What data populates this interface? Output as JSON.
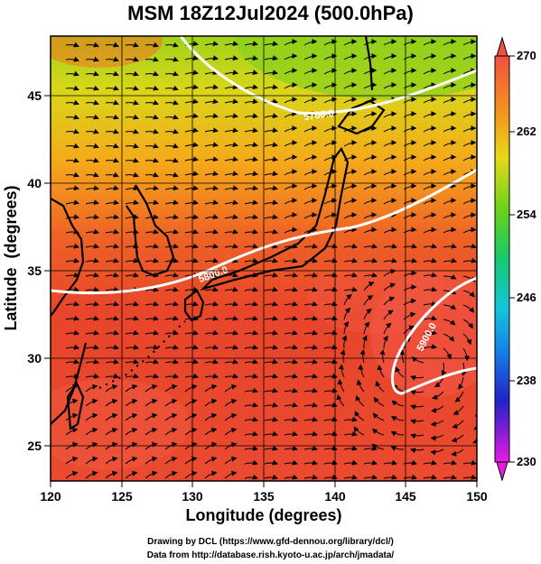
{
  "title": "MSM 18Z12Jul2024 (500.0hPa)",
  "map": {
    "xaxis": {
      "label": "Longitude (degrees)",
      "min": 120,
      "max": 150,
      "ticks": [
        "120",
        "125",
        "130",
        "135",
        "140",
        "145",
        "150"
      ]
    },
    "yaxis": {
      "label": "Latitude  (degrees)",
      "min": 22.4,
      "max": 47.6,
      "ticks": [
        "25",
        "30",
        "35",
        "40",
        "45"
      ]
    },
    "contours": [
      {
        "label": "5700.0"
      },
      {
        "label": "5800.0"
      },
      {
        "label": "5900.0"
      }
    ],
    "colorbar": {
      "ticks": [
        "270",
        "262",
        "254",
        "246",
        "238",
        "230"
      ],
      "min": 230,
      "max": 270
    }
  },
  "credits": {
    "line1": "Drawing by DCL (https://www.gfd-dennou.org/library/dcl/)",
    "line2": "Data from http://database.rish.kyoto-u.ac.jp/arch/jmadata/"
  },
  "colors": {
    "warm": "#e8452a",
    "hot": "#f3503f",
    "orange": "#f5901c",
    "yellow": "#f2c912",
    "green": "#9ed01a",
    "contour": "#ffffff"
  }
}
